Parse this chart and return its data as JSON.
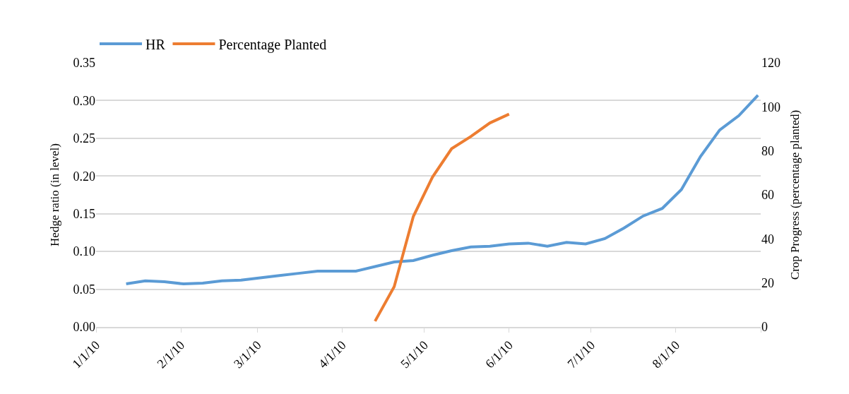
{
  "chart_data": {
    "type": "line",
    "x": [
      "2010-01-12",
      "2010-01-19",
      "2010-01-26",
      "2010-02-02",
      "2010-02-09",
      "2010-02-16",
      "2010-02-23",
      "2010-03-02",
      "2010-03-09",
      "2010-03-16",
      "2010-03-23",
      "2010-03-30",
      "2010-04-06",
      "2010-04-13",
      "2010-04-20",
      "2010-04-27",
      "2010-05-04",
      "2010-05-11",
      "2010-05-18",
      "2010-05-25",
      "2010-06-01",
      "2010-06-08",
      "2010-06-15",
      "2010-06-22",
      "2010-06-29",
      "2010-07-06",
      "2010-07-13",
      "2010-07-20",
      "2010-07-27",
      "2010-08-03",
      "2010-08-10",
      "2010-08-17",
      "2010-08-24",
      "2010-08-31"
    ],
    "series": [
      {
        "name": "HR",
        "color": "#5b9bd5",
        "values": [
          0.057,
          0.061,
          0.06,
          0.057,
          0.058,
          0.061,
          0.062,
          0.065,
          0.068,
          0.071,
          0.074,
          0.074,
          0.074,
          0.08,
          0.086,
          0.088,
          0.095,
          0.101,
          0.106,
          0.107,
          0.11,
          0.111,
          0.107,
          0.112,
          0.11,
          0.117,
          0.131,
          0.147,
          0.157,
          0.182,
          0.226,
          0.261,
          0.28,
          0.307
        ]
      },
      {
        "name": "Percentage Planted",
        "color": "#ed7d31",
        "axis": "y2",
        "x": [
          "2010-04-13",
          "2010-04-20",
          "2010-04-27",
          "2010-05-04",
          "2010-05-11",
          "2010-05-18",
          "2010-05-25",
          "2010-06-01"
        ],
        "values": [
          2.6,
          18.3,
          50.2,
          68.1,
          81.0,
          86.5,
          92.7,
          96.7
        ]
      }
    ],
    "ylabel": "Hedge ratio (in level)",
    "y2label": "Crop Progress (percentage planted)",
    "xlim": [
      "2010-01-01",
      "2010-09-01"
    ],
    "xticks": [
      {
        "value": "2010-01-01",
        "label": "1/1/10"
      },
      {
        "value": "2010-02-01",
        "label": "2/1/10"
      },
      {
        "value": "2010-03-01",
        "label": "3/1/10"
      },
      {
        "value": "2010-04-01",
        "label": "4/1/10"
      },
      {
        "value": "2010-05-01",
        "label": "5/1/10"
      },
      {
        "value": "2010-06-01",
        "label": "6/1/10"
      },
      {
        "value": "2010-07-01",
        "label": "7/1/10"
      },
      {
        "value": "2010-08-01",
        "label": "8/1/10"
      },
      {
        "value": "2010-09-01",
        "label": null
      }
    ],
    "ylim": [
      0,
      0.35
    ],
    "yticks": [
      {
        "value": 0,
        "label": "0.00"
      },
      {
        "value": 0.05,
        "label": "0.05"
      },
      {
        "value": 0.1,
        "label": "0.10"
      },
      {
        "value": 0.15,
        "label": "0.15"
      },
      {
        "value": 0.2,
        "label": "0.20"
      },
      {
        "value": 0.25,
        "label": "0.25"
      },
      {
        "value": 0.3,
        "label": "0.30"
      },
      {
        "value": 0.35,
        "label": "0.35"
      }
    ],
    "y2lim": [
      0,
      120
    ],
    "y2ticks": [
      0,
      20,
      40,
      60,
      80,
      100,
      120
    ],
    "grid": "y",
    "legend": "top left",
    "marker": "none",
    "line_style": "solid"
  }
}
